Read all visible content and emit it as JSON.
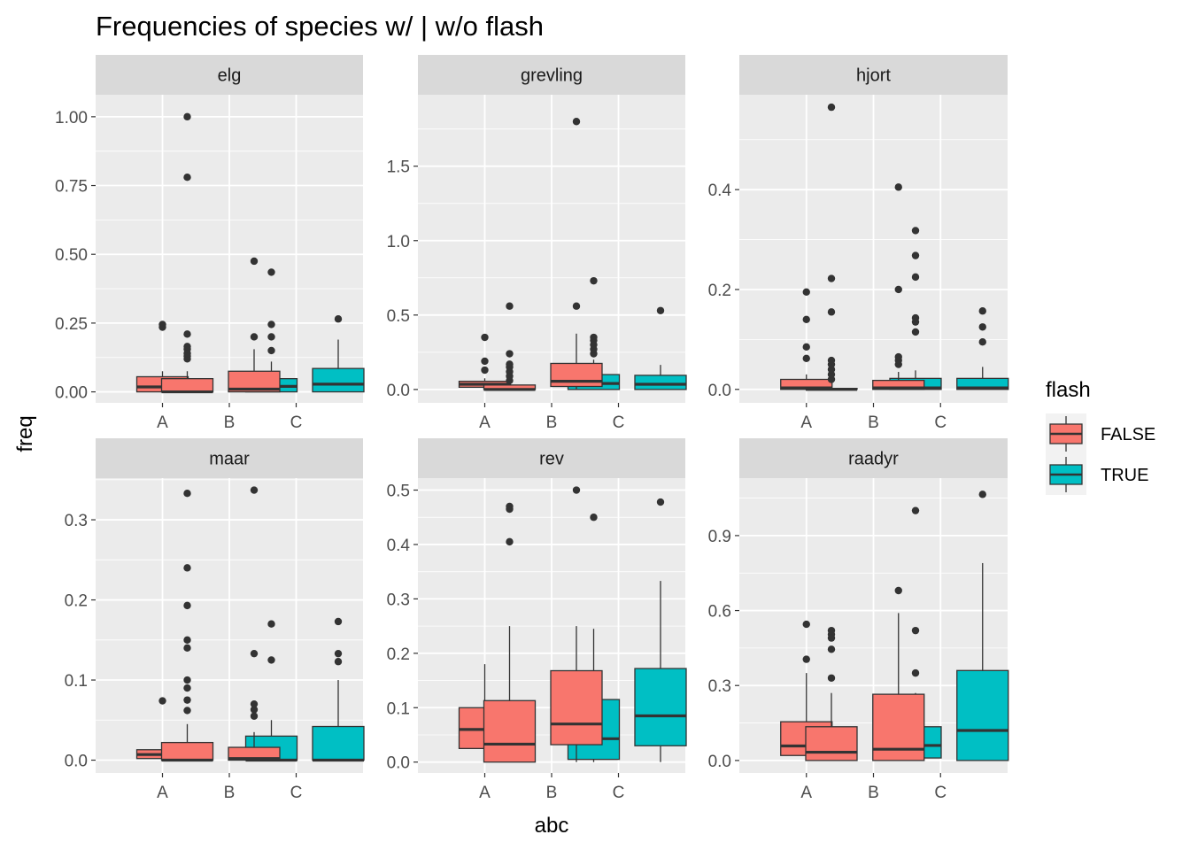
{
  "chart_data": {
    "type": "boxplot",
    "title": "Frequencies of species w/ | w/o flash",
    "xlabel": "abc",
    "ylabel": "freq",
    "categories": [
      "A",
      "B",
      "C"
    ],
    "grid": true,
    "legend": {
      "title": "flash",
      "position": "right",
      "entries": [
        {
          "name": "FALSE",
          "color": "#F8766D"
        },
        {
          "name": "TRUE",
          "color": "#00BFC4"
        }
      ]
    },
    "facets": [
      {
        "name": "elg",
        "ylim": [
          -0.04,
          1.08
        ],
        "yticks": [
          0.0,
          0.25,
          0.5,
          0.75,
          1.0
        ],
        "ytick_labels": [
          "0.00",
          "0.25",
          "0.50",
          "0.75",
          "1.00"
        ],
        "boxes": [
          {
            "category": "A",
            "flash": "FALSE",
            "min": 0,
            "q1": 0.0,
            "median": 0.018,
            "q3": 0.055,
            "max": 0.075,
            "outliers": [
              0.235,
              0.245
            ]
          },
          {
            "category": "B",
            "flash": "FALSE",
            "min": 0,
            "q1": 0.0,
            "median": 0.0,
            "q3": 0.048,
            "max": 0.075,
            "outliers": [
              0.12,
              0.13,
              0.14,
              0.155,
              0.165,
              0.21,
              0.78,
              1.0
            ]
          },
          {
            "category": "B",
            "flash": "TRUE",
            "min": 0,
            "q1": 0.0,
            "median": 0.02,
            "q3": 0.048,
            "max": 0.11,
            "outliers": [
              0.15,
              0.2,
              0.245,
              0.435
            ]
          },
          {
            "category": "C",
            "flash": "FALSE",
            "min": 0,
            "q1": 0.0,
            "median": 0.01,
            "q3": 0.075,
            "max": 0.155,
            "outliers": [
              0.2,
              0.475
            ]
          },
          {
            "category": "C",
            "flash": "TRUE",
            "min": 0,
            "q1": 0.0,
            "median": 0.028,
            "q3": 0.085,
            "max": 0.19,
            "outliers": [
              0.265
            ]
          }
        ]
      },
      {
        "name": "grevling",
        "ylim": [
          -0.09,
          1.98
        ],
        "yticks": [
          0.0,
          0.5,
          1.0,
          1.5
        ],
        "ytick_labels": [
          "0.0",
          "0.5",
          "1.0",
          "1.5"
        ],
        "boxes": [
          {
            "category": "A",
            "flash": "FALSE",
            "min": 0,
            "q1": 0.015,
            "median": 0.035,
            "q3": 0.055,
            "max": 0.075,
            "outliers": [
              0.13,
              0.19,
              0.35
            ]
          },
          {
            "category": "B",
            "flash": "FALSE",
            "min": 0,
            "q1": 0.0,
            "median": 0.0,
            "q3": 0.03,
            "max": 0.06,
            "outliers": [
              0.06,
              0.09,
              0.12,
              0.15,
              0.17,
              0.24,
              0.56
            ]
          },
          {
            "category": "B",
            "flash": "TRUE",
            "min": 0,
            "q1": 0.0,
            "median": 0.04,
            "q3": 0.1,
            "max": 0.2,
            "outliers": [
              0.24,
              0.27,
              0.3,
              0.33,
              0.35,
              0.73
            ]
          },
          {
            "category": "C",
            "flash": "FALSE",
            "min": 0,
            "q1": 0.02,
            "median": 0.055,
            "q3": 0.175,
            "max": 0.375,
            "outliers": [
              0.56,
              1.8
            ]
          },
          {
            "category": "C",
            "flash": "TRUE",
            "min": 0,
            "q1": 0.0,
            "median": 0.035,
            "q3": 0.095,
            "max": 0.165,
            "outliers": [
              0.53
            ]
          }
        ]
      },
      {
        "name": "hjort",
        "ylim": [
          -0.027,
          0.59
        ],
        "yticks": [
          0.0,
          0.2,
          0.4
        ],
        "ytick_labels": [
          "0.0",
          "0.2",
          "0.4"
        ],
        "boxes": [
          {
            "category": "A",
            "flash": "FALSE",
            "min": 0,
            "q1": 0.0,
            "median": 0.003,
            "q3": 0.02,
            "max": 0.03,
            "outliers": [
              0.062,
              0.085,
              0.14,
              0.195
            ]
          },
          {
            "category": "B",
            "flash": "FALSE",
            "min": 0,
            "q1": 0.0,
            "median": 0.0,
            "q3": 0.002,
            "max": 0.005,
            "outliers": [
              0.02,
              0.03,
              0.04,
              0.05,
              0.058,
              0.155,
              0.222,
              0.565
            ]
          },
          {
            "category": "B",
            "flash": "TRUE",
            "min": 0,
            "q1": 0.0,
            "median": 0.003,
            "q3": 0.022,
            "max": 0.038,
            "outliers": [
              0.115,
              0.135,
              0.143,
              0.225,
              0.268,
              0.318
            ]
          },
          {
            "category": "C",
            "flash": "FALSE",
            "min": 0,
            "q1": 0.0,
            "median": 0.003,
            "q3": 0.018,
            "max": 0.035,
            "outliers": [
              0.05,
              0.058,
              0.065,
              0.2,
              0.405
            ]
          },
          {
            "category": "C",
            "flash": "TRUE",
            "min": 0,
            "q1": 0.0,
            "median": 0.003,
            "q3": 0.022,
            "max": 0.045,
            "outliers": [
              0.095,
              0.125,
              0.157
            ]
          }
        ]
      },
      {
        "name": "maar",
        "ylim": [
          -0.016,
          0.352
        ],
        "yticks": [
          0.0,
          0.1,
          0.2,
          0.3
        ],
        "ytick_labels": [
          "0.0",
          "0.1",
          "0.2",
          "0.3"
        ],
        "boxes": [
          {
            "category": "A",
            "flash": "FALSE",
            "min": 0,
            "q1": 0.002,
            "median": 0.007,
            "q3": 0.013,
            "max": 0.02,
            "outliers": [
              0.074
            ]
          },
          {
            "category": "B",
            "flash": "FALSE",
            "min": 0,
            "q1": 0.0,
            "median": 0.0,
            "q3": 0.022,
            "max": 0.045,
            "outliers": [
              0.062,
              0.075,
              0.09,
              0.1,
              0.14,
              0.15,
              0.193,
              0.24,
              0.333
            ]
          },
          {
            "category": "B",
            "flash": "TRUE",
            "min": 0,
            "q1": 0.0,
            "median": 0.0,
            "q3": 0.03,
            "max": 0.05,
            "outliers": [
              0.125,
              0.17
            ]
          },
          {
            "category": "C",
            "flash": "FALSE",
            "min": 0,
            "q1": 0.0,
            "median": 0.002,
            "q3": 0.016,
            "max": 0.035,
            "outliers": [
              0.055,
              0.063,
              0.07,
              0.133,
              0.337
            ]
          },
          {
            "category": "C",
            "flash": "TRUE",
            "min": 0,
            "q1": 0.0,
            "median": 0.0,
            "q3": 0.042,
            "max": 0.1,
            "outliers": [
              0.123,
              0.133,
              0.173
            ]
          }
        ]
      },
      {
        "name": "rev",
        "ylim": [
          -0.02,
          0.522
        ],
        "yticks": [
          0.0,
          0.1,
          0.2,
          0.3,
          0.4,
          0.5
        ],
        "ytick_labels": [
          "0.0",
          "0.1",
          "0.2",
          "0.3",
          "0.4",
          "0.5"
        ],
        "boxes": [
          {
            "category": "A",
            "flash": "FALSE",
            "min": 0.0,
            "q1": 0.025,
            "median": 0.06,
            "q3": 0.1,
            "max": 0.18,
            "outliers": []
          },
          {
            "category": "B",
            "flash": "FALSE",
            "min": 0.0,
            "q1": 0.0,
            "median": 0.033,
            "q3": 0.113,
            "max": 0.25,
            "outliers": [
              0.405,
              0.465,
              0.47
            ]
          },
          {
            "category": "B",
            "flash": "TRUE",
            "min": 0.0,
            "q1": 0.005,
            "median": 0.043,
            "q3": 0.115,
            "max": 0.245,
            "outliers": [
              0.45
            ]
          },
          {
            "category": "C",
            "flash": "FALSE",
            "min": 0.0,
            "q1": 0.032,
            "median": 0.07,
            "q3": 0.168,
            "max": 0.25,
            "outliers": [
              0.5
            ]
          },
          {
            "category": "C",
            "flash": "TRUE",
            "min": 0.0,
            "q1": 0.03,
            "median": 0.085,
            "q3": 0.172,
            "max": 0.333,
            "outliers": [
              0.478
            ]
          }
        ]
      },
      {
        "name": "raadyr",
        "ylim": [
          -0.05,
          1.13
        ],
        "yticks": [
          0.0,
          0.3,
          0.6,
          0.9
        ],
        "ytick_labels": [
          "0.0",
          "0.3",
          "0.6",
          "0.9"
        ],
        "boxes": [
          {
            "category": "A",
            "flash": "FALSE",
            "min": 0.0,
            "q1": 0.02,
            "median": 0.058,
            "q3": 0.155,
            "max": 0.35,
            "outliers": [
              0.405,
              0.545
            ]
          },
          {
            "category": "B",
            "flash": "FALSE",
            "min": 0.0,
            "q1": 0.0,
            "median": 0.033,
            "q3": 0.135,
            "max": 0.27,
            "outliers": [
              0.33,
              0.445,
              0.49,
              0.505,
              0.52
            ]
          },
          {
            "category": "B",
            "flash": "TRUE",
            "min": 0.0,
            "q1": 0.01,
            "median": 0.06,
            "q3": 0.135,
            "max": 0.27,
            "outliers": [
              0.35,
              0.52,
              1.0
            ]
          },
          {
            "category": "C",
            "flash": "FALSE",
            "min": 0.0,
            "q1": 0.0,
            "median": 0.045,
            "q3": 0.265,
            "max": 0.59,
            "outliers": [
              0.68
            ]
          },
          {
            "category": "C",
            "flash": "TRUE",
            "min": 0.0,
            "q1": 0.0,
            "median": 0.12,
            "q3": 0.36,
            "max": 0.79,
            "outliers": [
              1.065
            ]
          }
        ]
      }
    ]
  }
}
